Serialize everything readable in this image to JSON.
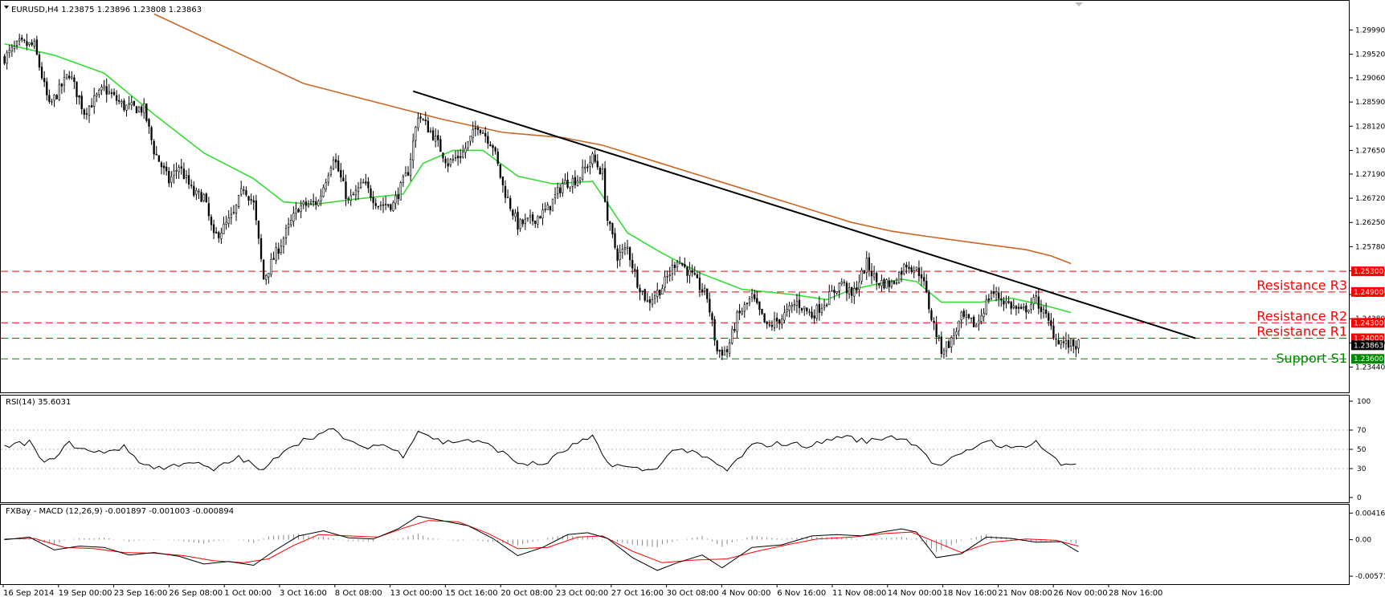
{
  "chart_header": "EURUSD,H4  1.23875 1.23896 1.23808 1.23863",
  "rsi_header": "RSI(14) 35.6031",
  "macd_header": "FXBay - MACD (12,26,9) -0.001897 -0.001003 -0.000894",
  "colors": {
    "bull_candle": "#000000",
    "bear_candle": "#000000",
    "sma_fast": "#33dd33",
    "sma_slow": "#cc6622",
    "trendline": "#000000",
    "resistance": "#ff0000",
    "support": "#008800",
    "macd_line": "#000000",
    "macd_signal": "#ff0000",
    "macd_hist": "#888888",
    "rsi_line": "#000000"
  },
  "chart_data": [
    {
      "type": "candlestick",
      "title": "EURUSD,H4",
      "price_axis_ticks": [
        "1.29990",
        "1.29520",
        "1.29060",
        "1.28590",
        "1.28120",
        "1.27650",
        "1.27190",
        "1.26720",
        "1.26250",
        "1.25780",
        "1.25310",
        "1.24850",
        "1.24380",
        "1.23910",
        "1.23440"
      ],
      "ylim": [
        1.2312,
        1.3026
      ],
      "time_labels": [
        "16 Sep 2014",
        "19 Sep 00:00",
        "23 Sep 16:00",
        "26 Sep 08:00",
        "1 Oct 00:00",
        "3 Oct 16:00",
        "8 Oct 08:00",
        "13 Oct 00:00",
        "15 Oct 16:00",
        "20 Oct 08:00",
        "23 Oct 00:00",
        "27 Oct 16:00",
        "30 Oct 08:00",
        "4 Nov 00:00",
        "6 Nov 16:00",
        "11 Nov 08:00",
        "14 Nov 00:00",
        "18 Nov 16:00",
        "21 Nov 08:00",
        "26 Nov 00:00",
        "28 Nov 16:00"
      ],
      "bars_total": 432,
      "last_price": 1.23863,
      "close_path": [
        [
          0,
          1.2945
        ],
        [
          6,
          1.2972
        ],
        [
          12,
          1.2968
        ],
        [
          18,
          1.285
        ],
        [
          26,
          1.2915
        ],
        [
          32,
          1.284
        ],
        [
          40,
          1.2885
        ],
        [
          48,
          1.285
        ],
        [
          56,
          1.2845
        ],
        [
          60,
          1.2765
        ],
        [
          66,
          1.2705
        ],
        [
          70,
          1.2735
        ],
        [
          76,
          1.268
        ],
        [
          80,
          1.2675
        ],
        [
          84,
          1.2595
        ],
        [
          88,
          1.2615
        ],
        [
          92,
          1.264
        ],
        [
          96,
          1.2695
        ],
        [
          100,
          1.266
        ],
        [
          104,
          1.2515
        ],
        [
          110,
          1.2575
        ],
        [
          118,
          1.2655
        ],
        [
          126,
          1.2665
        ],
        [
          132,
          1.2755
        ],
        [
          138,
          1.2665
        ],
        [
          144,
          1.27
        ],
        [
          150,
          1.266
        ],
        [
          156,
          1.266
        ],
        [
          162,
          1.2725
        ],
        [
          166,
          1.2835
        ],
        [
          172,
          1.2795
        ],
        [
          178,
          1.274
        ],
        [
          184,
          1.276
        ],
        [
          190,
          1.2815
        ],
        [
          196,
          1.2775
        ],
        [
          200,
          1.2695
        ],
        [
          206,
          1.262
        ],
        [
          212,
          1.263
        ],
        [
          218,
          1.265
        ],
        [
          224,
          1.27
        ],
        [
          230,
          1.271
        ],
        [
          236,
          1.275
        ],
        [
          240,
          1.272
        ],
        [
          242,
          1.263
        ],
        [
          246,
          1.256
        ],
        [
          250,
          1.2575
        ],
        [
          254,
          1.251
        ],
        [
          258,
          1.247
        ],
        [
          264,
          1.25
        ],
        [
          270,
          1.2555
        ],
        [
          276,
          1.252
        ],
        [
          282,
          1.248
        ],
        [
          286,
          1.2375
        ],
        [
          290,
          1.2375
        ],
        [
          294,
          1.244
        ],
        [
          300,
          1.248
        ],
        [
          306,
          1.242
        ],
        [
          312,
          1.244
        ],
        [
          318,
          1.247
        ],
        [
          324,
          1.2445
        ],
        [
          330,
          1.2475
        ],
        [
          336,
          1.251
        ],
        [
          340,
          1.248
        ],
        [
          346,
          1.2545
        ],
        [
          350,
          1.251
        ],
        [
          356,
          1.2505
        ],
        [
          362,
          1.2545
        ],
        [
          368,
          1.2525
        ],
        [
          372,
          1.244
        ],
        [
          376,
          1.2378
        ],
        [
          380,
          1.2395
        ],
        [
          384,
          1.244
        ],
        [
          390,
          1.2425
        ],
        [
          396,
          1.249
        ],
        [
          402,
          1.247
        ],
        [
          408,
          1.245
        ],
        [
          414,
          1.2475
        ],
        [
          418,
          1.244
        ],
        [
          422,
          1.24
        ],
        [
          426,
          1.2388
        ],
        [
          431,
          1.23863
        ]
      ],
      "sma_fast_path": [
        [
          0,
          1.2972
        ],
        [
          20,
          1.295
        ],
        [
          40,
          1.2915
        ],
        [
          60,
          1.2835
        ],
        [
          80,
          1.276
        ],
        [
          100,
          1.271
        ],
        [
          112,
          1.2665
        ],
        [
          124,
          1.266
        ],
        [
          140,
          1.267
        ],
        [
          160,
          1.268
        ],
        [
          168,
          1.274
        ],
        [
          180,
          1.2765
        ],
        [
          192,
          1.2765
        ],
        [
          206,
          1.2715
        ],
        [
          220,
          1.27
        ],
        [
          236,
          1.2705
        ],
        [
          250,
          1.2605
        ],
        [
          264,
          1.2565
        ],
        [
          280,
          1.2525
        ],
        [
          296,
          1.2495
        ],
        [
          316,
          1.2485
        ],
        [
          330,
          1.2475
        ],
        [
          340,
          1.2495
        ],
        [
          350,
          1.2505
        ],
        [
          360,
          1.2515
        ],
        [
          366,
          1.251
        ],
        [
          376,
          1.247
        ],
        [
          392,
          1.247
        ],
        [
          404,
          1.2478
        ],
        [
          418,
          1.2463
        ],
        [
          428,
          1.245
        ]
      ],
      "sma_slow_path": [
        [
          60,
          1.303
        ],
        [
          80,
          1.2985
        ],
        [
          100,
          1.294
        ],
        [
          120,
          1.2895
        ],
        [
          140,
          1.287
        ],
        [
          160,
          1.2845
        ],
        [
          176,
          1.2825
        ],
        [
          200,
          1.28
        ],
        [
          224,
          1.279
        ],
        [
          240,
          1.2775
        ],
        [
          260,
          1.2745
        ],
        [
          280,
          1.2715
        ],
        [
          300,
          1.2685
        ],
        [
          320,
          1.2655
        ],
        [
          340,
          1.2625
        ],
        [
          356,
          1.2608
        ],
        [
          370,
          1.2598
        ],
        [
          390,
          1.2585
        ],
        [
          410,
          1.2572
        ],
        [
          420,
          1.256
        ],
        [
          428,
          1.2545
        ]
      ],
      "trendline": [
        [
          164,
          1.288
        ],
        [
          478,
          1.24
        ]
      ],
      "levels": [
        {
          "name": "Resistance R3",
          "value": 1.253,
          "tag": "1.25300",
          "color": "#ff0000"
        },
        {
          "name": "Resistance R2",
          "value": 1.249,
          "tag": "1.24900",
          "color": "#ff0000"
        },
        {
          "name": "Resistance R1",
          "value": 1.243,
          "tag": "1.24300",
          "color": "#ff0000"
        },
        {
          "name": "",
          "value": 1.24,
          "tag": "1.24000",
          "color": "#ff0000"
        },
        {
          "name": "Support S1",
          "value": 1.236,
          "tag": "1.23600",
          "color": "#008800"
        }
      ],
      "level_label_lines": [
        {
          "text": "Resistance R3",
          "value": 1.249
        },
        {
          "text": "Resistance R2",
          "value": 1.243
        },
        {
          "text": "Resistance R1",
          "value": 1.24
        },
        {
          "text": "Support S1",
          "value": 1.2348
        }
      ]
    },
    {
      "type": "line",
      "title": "RSI(14) 35.6031",
      "ylim": [
        0,
        100
      ],
      "ticks": [
        "100",
        "70",
        "50",
        "30",
        "0"
      ],
      "series": [
        {
          "values": [
            [
              0,
              52
            ],
            [
              10,
              58
            ],
            [
              16,
              34
            ],
            [
              26,
              56
            ],
            [
              36,
              46
            ],
            [
              48,
              52
            ],
            [
              56,
              34
            ],
            [
              64,
              30
            ],
            [
              74,
              38
            ],
            [
              84,
              28
            ],
            [
              94,
              42
            ],
            [
              104,
              27
            ],
            [
              112,
              50
            ],
            [
              122,
              62
            ],
            [
              132,
              70
            ],
            [
              142,
              52
            ],
            [
              152,
              55
            ],
            [
              160,
              44
            ],
            [
              166,
              70
            ],
            [
              176,
              57
            ],
            [
              186,
              60
            ],
            [
              196,
              53
            ],
            [
              206,
              36
            ],
            [
              216,
              34
            ],
            [
              228,
              54
            ],
            [
              236,
              62
            ],
            [
              242,
              36
            ],
            [
              252,
              30
            ],
            [
              260,
              28
            ],
            [
              270,
              52
            ],
            [
              282,
              40
            ],
            [
              290,
              28
            ],
            [
              300,
              54
            ],
            [
              312,
              56
            ],
            [
              324,
              54
            ],
            [
              336,
              64
            ],
            [
              346,
              58
            ],
            [
              356,
              64
            ],
            [
              366,
              56
            ],
            [
              374,
              32
            ],
            [
              384,
              44
            ],
            [
              394,
              60
            ],
            [
              404,
              50
            ],
            [
              414,
              58
            ],
            [
              424,
              34
            ],
            [
              431,
              36
            ]
          ]
        }
      ]
    },
    {
      "type": "line",
      "title": "FXBay - MACD (12,26,9) -0.001897 -0.001003 -0.000894",
      "ylim": [
        -0.0062,
        0.0046
      ],
      "ticks": [
        "0.004163",
        "0.00",
        "-0.005716"
      ],
      "series": [
        {
          "values": [
            [
              0,
              0.0
            ],
            [
              10,
              0.0004
            ],
            [
              20,
              -0.0016
            ],
            [
              30,
              -0.001
            ],
            [
              40,
              -0.0012
            ],
            [
              50,
              -0.0024
            ],
            [
              60,
              -0.002
            ],
            [
              70,
              -0.0026
            ],
            [
              80,
              -0.0038
            ],
            [
              90,
              -0.0034
            ],
            [
              100,
              -0.004
            ],
            [
              108,
              -0.0018
            ],
            [
              118,
              0.0006
            ],
            [
              128,
              0.0014
            ],
            [
              138,
              0.0003
            ],
            [
              148,
              0.0001
            ],
            [
              158,
              0.0017
            ],
            [
              166,
              0.0037
            ],
            [
              174,
              0.0031
            ],
            [
              186,
              0.0022
            ],
            [
              196,
              0.0002
            ],
            [
              206,
              -0.0025
            ],
            [
              216,
              -0.0012
            ],
            [
              226,
              0.0008
            ],
            [
              234,
              0.0011
            ],
            [
              242,
              0.0002
            ],
            [
              252,
              -0.0028
            ],
            [
              262,
              -0.0048
            ],
            [
              270,
              -0.0036
            ],
            [
              280,
              -0.0024
            ],
            [
              288,
              -0.0044
            ],
            [
              300,
              -0.0012
            ],
            [
              312,
              -0.0008
            ],
            [
              324,
              0.0006
            ],
            [
              334,
              0.0008
            ],
            [
              344,
              0.0006
            ],
            [
              352,
              0.0012
            ],
            [
              360,
              0.0017
            ],
            [
              366,
              0.0012
            ],
            [
              374,
              -0.0028
            ],
            [
              384,
              -0.0022
            ],
            [
              394,
              0.0004
            ],
            [
              404,
              0.0002
            ],
            [
              414,
              -0.0004
            ],
            [
              424,
              -0.0003
            ],
            [
              431,
              -0.0019
            ]
          ]
        },
        {
          "values": [
            [
              0,
              0.0001
            ],
            [
              12,
              0.0002
            ],
            [
              24,
              -0.0012
            ],
            [
              36,
              -0.0014
            ],
            [
              48,
              -0.002
            ],
            [
              60,
              -0.0021
            ],
            [
              72,
              -0.0025
            ],
            [
              84,
              -0.0033
            ],
            [
              96,
              -0.0036
            ],
            [
              106,
              -0.003
            ],
            [
              116,
              -0.0009
            ],
            [
              126,
              0.0008
            ],
            [
              138,
              0.0006
            ],
            [
              150,
              0.0004
            ],
            [
              160,
              0.0018
            ],
            [
              170,
              0.003
            ],
            [
              182,
              0.0028
            ],
            [
              194,
              0.001
            ],
            [
              206,
              -0.0014
            ],
            [
              218,
              -0.0012
            ],
            [
              230,
              0.0004
            ],
            [
              240,
              0.0006
            ],
            [
              252,
              -0.0018
            ],
            [
              264,
              -0.0036
            ],
            [
              276,
              -0.0032
            ],
            [
              290,
              -0.003
            ],
            [
              302,
              -0.0018
            ],
            [
              314,
              -0.0008
            ],
            [
              326,
              0.0001
            ],
            [
              340,
              0.0004
            ],
            [
              354,
              0.001
            ],
            [
              364,
              0.0012
            ],
            [
              374,
              -0.0004
            ],
            [
              384,
              -0.002
            ],
            [
              396,
              -0.0004
            ],
            [
              410,
              0.0001
            ],
            [
              422,
              -0.0001
            ],
            [
              431,
              -0.001
            ]
          ]
        }
      ]
    }
  ]
}
